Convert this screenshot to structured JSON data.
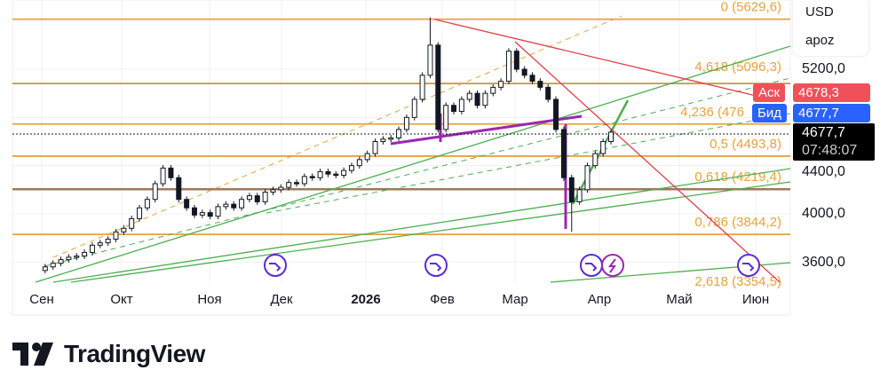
{
  "chart_data": {
    "type": "candlestick",
    "symbol_menu": {
      "currency": "USD",
      "account": "apoz"
    },
    "time_labels": [
      "Сен",
      "Окт",
      "Ноя",
      "Дек",
      "2026",
      "Фев",
      "Мар",
      "Апр",
      "Май",
      "Июн"
    ],
    "price_labels": [
      "5200,0",
      "4400,0",
      "4000,0",
      "3600,0"
    ],
    "ylim": [
      3450,
      5700
    ],
    "closes": [
      3530,
      3560,
      3590,
      3620,
      3640,
      3650,
      3680,
      3740,
      3760,
      3790,
      3850,
      3880,
      3960,
      4050,
      4120,
      4250,
      4380,
      4300,
      4120,
      4050,
      3990,
      4010,
      3980,
      4060,
      4080,
      4050,
      4120,
      4150,
      4100,
      4180,
      4200,
      4220,
      4260,
      4250,
      4310,
      4300,
      4350,
      4330,
      4320,
      4360,
      4400,
      4450,
      4500,
      4600,
      4620,
      4630,
      4700,
      4800,
      4950,
      5150,
      5400,
      4700,
      4900,
      4850,
      4950,
      5000,
      4900,
      5000,
      5050,
      5100,
      5350,
      5200,
      5150,
      5100,
      5050,
      4950,
      4700,
      4300,
      4100,
      4200,
      4400,
      4500,
      4600,
      4677.7
    ],
    "fib_levels": [
      {
        "label": "0 (5629,6)",
        "price": 5629.6
      },
      {
        "label": "4,618 (5096,3)",
        "price": 5096.3
      },
      {
        "label": "4,236 (476",
        "price": 4760
      },
      {
        "label": "0,5 (4493,8)",
        "price": 4493.8
      },
      {
        "label": "0,618 (4219,4)",
        "price": 4219.4
      },
      {
        "label": "0,786 (3844,2)",
        "price": 3844.2
      },
      {
        "label": "2,618 (3354,5)",
        "price": 3354.5
      }
    ],
    "ask": {
      "label": "Аск",
      "value": "4678,3",
      "color": "#f0505a"
    },
    "bid": {
      "label": "Бид",
      "value": "4677,7",
      "color": "#2962ff"
    },
    "last": {
      "value": "4677,7",
      "countdown": "07:48:07"
    },
    "colors": {
      "fib": "#e8a23c",
      "trend": "#4caf50",
      "resistance": "#e0404a",
      "purple": "#9c27b0",
      "candle": "#131722"
    }
  },
  "brand": {
    "name": "TradingView"
  }
}
